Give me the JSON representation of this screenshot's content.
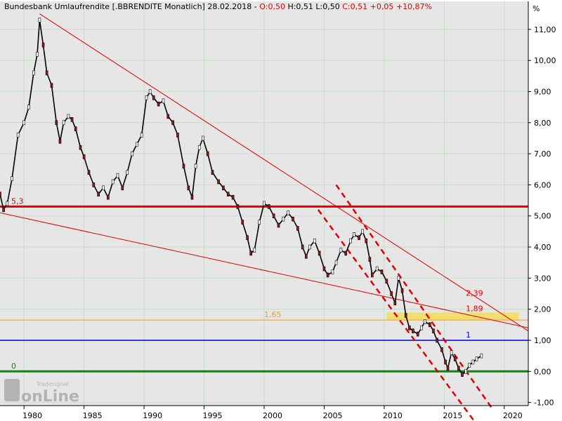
{
  "header": {
    "instrument": "Bundesbank Umlaufrendite [.BBRENDITE  Monatlich] 28.02.2018",
    "open": "O:0,50",
    "hlc": "H:0,51 L:0,50",
    "close": "C:0,51",
    "change": "+0,05 +10,87%"
  },
  "watermark": {
    "brand": "onLine",
    "subbrand": "Tradesignal"
  },
  "colors": {
    "background": "#ffffff",
    "plot_area": "#e6e6e6",
    "grid": "#c8dcc8",
    "price_line": "#000000",
    "up_fill": "#ffffff",
    "down_fill": "#8b1a1a",
    "red_line": "#e00000",
    "orange_line": "#f0a030",
    "blue_line": "#0000e0",
    "green_line": "#1a7a1a",
    "yellow_zone": "#f2dc5a"
  },
  "chart_data": {
    "type": "line",
    "title": "Bundesbank Umlaufrendite",
    "ylabel": "%",
    "xlim": [
      1978.0,
      2022.0
    ],
    "ylim": [
      -1.1,
      11.9
    ],
    "grid": true,
    "x_ticks": [
      1980,
      1985,
      1990,
      1995,
      2000,
      2005,
      2010,
      2015,
      2020
    ],
    "y_ticks": [
      -1,
      0,
      1,
      2,
      3,
      4,
      5,
      6,
      7,
      8,
      9,
      10,
      11
    ],
    "y_tick_labels": [
      "-1,00",
      "0,00",
      "1,00",
      "2,00",
      "3,00",
      "4,00",
      "5,00",
      "6,00",
      "7,00",
      "8,00",
      "9,00",
      "10,00",
      "11,00"
    ],
    "series": [
      {
        "name": "Umlaufrendite",
        "x": [
          1978.0,
          1978.3,
          1978.6,
          1979.0,
          1979.5,
          1980.0,
          1980.4,
          1980.8,
          1981.1,
          1981.3,
          1981.6,
          1981.9,
          1982.3,
          1982.7,
          1983.0,
          1983.3,
          1983.7,
          1984.0,
          1984.3,
          1984.7,
          1985.0,
          1985.4,
          1985.8,
          1986.2,
          1986.6,
          1987.0,
          1987.4,
          1987.8,
          1988.2,
          1988.6,
          1989.0,
          1989.4,
          1989.8,
          1990.2,
          1990.5,
          1990.8,
          1991.2,
          1991.6,
          1992.0,
          1992.4,
          1992.8,
          1993.3,
          1993.7,
          1994.0,
          1994.3,
          1994.6,
          1994.9,
          1995.3,
          1995.7,
          1996.2,
          1996.6,
          1997.0,
          1997.4,
          1997.8,
          1998.2,
          1998.6,
          1998.9,
          1999.2,
          1999.6,
          2000.0,
          2000.4,
          2000.8,
          2001.2,
          2001.6,
          2002.0,
          2002.4,
          2002.8,
          2003.2,
          2003.5,
          2003.8,
          2004.2,
          2004.6,
          2005.0,
          2005.3,
          2005.7,
          2006.0,
          2006.4,
          2006.8,
          2007.2,
          2007.5,
          2007.9,
          2008.2,
          2008.5,
          2008.8,
          2009.0,
          2009.4,
          2009.8,
          2010.2,
          2010.6,
          2010.9,
          2011.2,
          2011.5,
          2011.8,
          2012.1,
          2012.4,
          2012.8,
          2013.1,
          2013.4,
          2013.8,
          2014.1,
          2014.4,
          2014.8,
          2015.1,
          2015.3,
          2015.6,
          2015.9,
          2016.2,
          2016.5,
          2016.8,
          2017.1,
          2017.4,
          2017.7,
          2018.1
        ],
        "y": [
          5.7,
          5.2,
          5.4,
          6.2,
          7.6,
          8.0,
          8.5,
          9.6,
          10.2,
          11.3,
          10.5,
          9.6,
          9.2,
          8.0,
          7.4,
          8.0,
          8.2,
          8.1,
          7.8,
          7.2,
          6.9,
          6.4,
          6.0,
          5.7,
          5.9,
          5.6,
          6.1,
          6.3,
          5.9,
          6.4,
          7.0,
          7.3,
          7.6,
          8.8,
          9.0,
          8.8,
          8.6,
          8.7,
          8.2,
          8.0,
          7.6,
          6.6,
          5.9,
          5.6,
          6.6,
          7.2,
          7.5,
          7.0,
          6.4,
          6.1,
          5.9,
          5.7,
          5.6,
          5.3,
          4.8,
          4.3,
          3.8,
          3.9,
          4.8,
          5.4,
          5.3,
          5.0,
          4.7,
          4.9,
          5.1,
          4.9,
          4.6,
          4.0,
          3.7,
          4.0,
          4.2,
          3.8,
          3.3,
          3.1,
          3.2,
          3.5,
          3.9,
          3.8,
          4.2,
          4.4,
          4.3,
          4.5,
          4.2,
          3.6,
          3.1,
          3.3,
          3.2,
          2.9,
          2.5,
          2.2,
          3.0,
          2.6,
          1.8,
          1.4,
          1.3,
          1.2,
          1.4,
          1.6,
          1.5,
          1.3,
          1.0,
          0.7,
          0.3,
          0.1,
          0.6,
          0.4,
          0.1,
          -0.1,
          0.0,
          0.2,
          0.3,
          0.4,
          0.5
        ]
      }
    ],
    "annotations": [
      {
        "label": "5,3",
        "kind": "horizontal",
        "y": 5.3,
        "color": "#e00000"
      },
      {
        "label": "1,65",
        "kind": "horizontal",
        "y": 1.65,
        "color": "#f0a030"
      },
      {
        "label": "1",
        "kind": "horizontal",
        "y": 1.0,
        "color": "#0000e0"
      },
      {
        "label": "0",
        "kind": "horizontal",
        "y": 0.0,
        "color": "#1a7a1a"
      },
      {
        "label": "2,39",
        "kind": "point",
        "x": 2016.8,
        "y": 2.39,
        "color": "#e00000"
      },
      {
        "label": "1,89",
        "kind": "point",
        "x": 2016.8,
        "y": 1.89,
        "color": "#e00000"
      }
    ],
    "trendlines": [
      {
        "style": "solid",
        "color": "#e00000",
        "from": [
          1981.3,
          11.5
        ],
        "to": [
          2022.0,
          1.3
        ]
      },
      {
        "style": "solid",
        "color": "#e00000",
        "from": [
          1978.0,
          5.1
        ],
        "to": [
          2022.0,
          1.4
        ]
      },
      {
        "style": "dashed",
        "color": "#e00000",
        "from": [
          2006.0,
          6.0
        ],
        "to": [
          2019.0,
          -1.2
        ]
      },
      {
        "style": "dashed",
        "color": "#e00000",
        "from": [
          2004.5,
          5.2
        ],
        "to": [
          2017.5,
          -1.6
        ]
      }
    ],
    "zones": [
      {
        "color": "#f2dc5a",
        "x_from": 2010.2,
        "x_to": 2021.2,
        "y_from": 1.65,
        "y_to": 1.89
      }
    ]
  }
}
